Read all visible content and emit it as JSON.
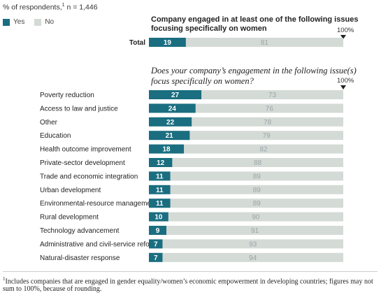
{
  "chart_data": {
    "type": "bar",
    "subtitle": "% of respondents,",
    "subtitle_sup": "1",
    "sample": "n = 1,446",
    "legend": [
      {
        "name": "Yes",
        "color": "#1a6e80"
      },
      {
        "name": "No",
        "color": "#d4dad6"
      }
    ],
    "top_panel": {
      "heading": "Company engaged in at least one of the following issues focusing specifically on women",
      "full_label": "100%",
      "categories": [
        "Total"
      ],
      "series": [
        {
          "name": "Yes",
          "values": [
            19
          ]
        },
        {
          "name": "No",
          "values": [
            81
          ]
        }
      ]
    },
    "bottom_panel": {
      "heading": "Does your company’s engagement in the following issue(s) focus specifically on women?",
      "full_label": "100%",
      "categories": [
        "Poverty reduction",
        "Access to law and justice",
        "Other",
        "Education",
        "Health outcome improvement",
        "Private-sector development",
        "Trade and economic integration",
        "Urban development",
        "Environmental-resource management",
        "Rural development",
        "Technology advancement",
        "Administrative and civil-service reform",
        "Natural-disaster response"
      ],
      "series": [
        {
          "name": "Yes",
          "values": [
            27,
            24,
            22,
            21,
            18,
            12,
            11,
            11,
            11,
            10,
            9,
            7,
            7
          ]
        },
        {
          "name": "No",
          "values": [
            73,
            76,
            78,
            79,
            82,
            88,
            89,
            89,
            89,
            90,
            91,
            93,
            94
          ]
        }
      ]
    },
    "colors": {
      "yes": "#1a6e80",
      "no": "#d4dad6",
      "no_label": "#9aa6a8",
      "yes_label": "#ffffff"
    },
    "footnote_marker": "1",
    "footnote": "Includes companies that are engaged in gender equality/women’s economic empowerment in developing countries; figures may not sum to 100%, because of rounding."
  }
}
